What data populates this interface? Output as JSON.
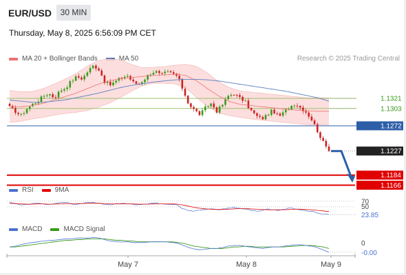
{
  "header": {
    "symbol": "EUR/USD",
    "timeframe": "30 MIN",
    "datetime": "Thursday, May 8, 2025 6:56:09 PM CET"
  },
  "credit": "Research © 2025 Trading Central",
  "legends": {
    "price": [
      {
        "name": "MA 20 + Bollinger Bands",
        "color": "#f07070"
      },
      {
        "name": "MA 50",
        "color": "#2d5ea8"
      }
    ],
    "rsi": [
      {
        "name": "RSI",
        "color": "#4a72d0"
      },
      {
        "name": "9MA",
        "color": "#e00000"
      }
    ],
    "macd": [
      {
        "name": "MACD",
        "color": "#4a72d0"
      },
      {
        "name": "MACD Signal",
        "color": "#3a9a1a"
      }
    ]
  },
  "colors": {
    "bull": "#3a9a1a",
    "bear": "#cc2222",
    "band_fill": "#fbd8d8",
    "resistance": "#9dc06c",
    "pivot": "#2d5ea8",
    "support": "#e00000",
    "last_price": "#222222",
    "forecast_arrow": "#2d5ea8"
  },
  "chart_data": [
    {
      "type": "candlestick",
      "y_range": [
        1.118,
        1.138
      ],
      "levels": [
        {
          "value": 1.1321,
          "label": "1.1321",
          "kind": "resistance"
        },
        {
          "value": 1.1303,
          "label": "1.1303",
          "kind": "resistance"
        },
        {
          "value": 1.1272,
          "label": "1.1272",
          "kind": "pivot"
        },
        {
          "value": 1.1227,
          "label": "1.1227",
          "kind": "last"
        },
        {
          "value": 1.1184,
          "label": "1.1184",
          "kind": "support"
        },
        {
          "value": 1.1166,
          "label": "1.1166",
          "kind": "support"
        }
      ],
      "forecast": {
        "from": 1.1227,
        "to": 1.1172
      },
      "close_path": [
        1.1305,
        1.1298,
        1.129,
        1.1302,
        1.131,
        1.1316,
        1.1325,
        1.133,
        1.1322,
        1.1335,
        1.134,
        1.1352,
        1.136,
        1.1356,
        1.137,
        1.138,
        1.1372,
        1.135,
        1.1345,
        1.1352,
        1.1358,
        1.1362,
        1.135,
        1.1346,
        1.1355,
        1.1365,
        1.137,
        1.1362,
        1.1368,
        1.1366,
        1.136,
        1.1335,
        1.131,
        1.13,
        1.1292,
        1.1305,
        1.1312,
        1.1298,
        1.131,
        1.1325,
        1.133,
        1.1322,
        1.1316,
        1.13,
        1.129,
        1.1284,
        1.1292,
        1.13,
        1.1288,
        1.1296,
        1.1306,
        1.1312,
        1.1304,
        1.1296,
        1.1282,
        1.1262,
        1.1242,
        1.1227
      ],
      "ma20_path": [
        1.1305,
        1.1306,
        1.1308,
        1.1312,
        1.1318,
        1.1324,
        1.133,
        1.1338,
        1.1346,
        1.1352,
        1.1356,
        1.1358,
        1.136,
        1.1362,
        1.1363,
        1.1364,
        1.1362,
        1.1352,
        1.1338,
        1.1325,
        1.1315,
        1.131,
        1.1308,
        1.1306,
        1.1304,
        1.1302,
        1.13,
        1.1299,
        1.1298,
        1.1298
      ],
      "bb_upper_path": [
        1.1335,
        1.1333,
        1.1333,
        1.1338,
        1.1346,
        1.1355,
        1.1365,
        1.1378,
        1.1388,
        1.1392,
        1.139,
        1.1382,
        1.1376,
        1.1376,
        1.1378,
        1.138,
        1.1382,
        1.1378,
        1.1366,
        1.135,
        1.134,
        1.1334,
        1.1332,
        1.133,
        1.1328,
        1.1326,
        1.1324,
        1.1322,
        1.1322,
        1.1322
      ],
      "bb_lower_path": [
        1.1278,
        1.128,
        1.1284,
        1.1287,
        1.1291,
        1.1294,
        1.1296,
        1.1299,
        1.1305,
        1.1312,
        1.1322,
        1.1333,
        1.1343,
        1.1348,
        1.1348,
        1.1347,
        1.134,
        1.1322,
        1.1306,
        1.1295,
        1.129,
        1.1287,
        1.1284,
        1.1282,
        1.128,
        1.1278,
        1.1276,
        1.1274,
        1.1274,
        1.1274
      ],
      "ma50_path": [
        1.1318,
        1.1316,
        1.1314,
        1.1314,
        1.1316,
        1.1318,
        1.1322,
        1.1326,
        1.133,
        1.1335,
        1.134,
        1.1344,
        1.1347,
        1.135,
        1.1352,
        1.1354,
        1.1355,
        1.1355,
        1.1354,
        1.1352,
        1.1349,
        1.1346,
        1.1343,
        1.134,
        1.1337,
        1.1334,
        1.133,
        1.1326,
        1.1322,
        1.1316
      ]
    },
    {
      "type": "line",
      "name": "RSI",
      "level_labels": [
        "70",
        "50",
        "23.85"
      ],
      "levels": [
        70,
        50
      ],
      "current": 23.85,
      "y_range": [
        10,
        80
      ],
      "rsi_path": [
        64,
        60,
        56,
        58,
        60,
        62,
        58,
        56,
        60,
        64,
        66,
        60,
        58,
        62,
        65,
        64,
        62,
        58,
        56,
        60,
        62,
        60,
        58,
        56,
        58,
        62,
        64,
        60,
        58,
        60,
        56,
        42,
        38,
        36,
        38,
        42,
        44,
        40,
        42,
        46,
        48,
        44,
        42,
        38,
        36,
        38,
        42,
        40,
        38,
        42,
        46,
        44,
        40,
        38,
        34,
        30,
        26,
        23.85
      ],
      "ma9_path": [
        62,
        61,
        60,
        59,
        59,
        60,
        60,
        59,
        59,
        60,
        61,
        61,
        61,
        61,
        62,
        62,
        62,
        61,
        60,
        60,
        60,
        60,
        60,
        59,
        59,
        59,
        60,
        60,
        60,
        60,
        59,
        56,
        52,
        48,
        45,
        43,
        42,
        41,
        41,
        42,
        43,
        44,
        44,
        43,
        42,
        41,
        40,
        40,
        40,
        40,
        41,
        42,
        42,
        41,
        40,
        38,
        36,
        34
      ]
    },
    {
      "type": "line",
      "name": "MACD",
      "level_labels": [
        "0",
        "-0.00"
      ],
      "y_range": [
        -0.0014,
        0.0012
      ],
      "x_labels": [
        "May 7",
        "May 8",
        "May 9"
      ],
      "macd_path": [
        -0.0004,
        -0.0003,
        -0.0001,
        0.0001,
        0.0002,
        0.0003,
        0.0004,
        0.0005,
        0.0005,
        0.0006,
        0.0007,
        0.0007,
        0.0008,
        0.0008,
        0.0008,
        0.0009,
        0.0008,
        0.0006,
        0.0004,
        0.0003,
        0.0003,
        0.0003,
        0.0002,
        0.0002,
        0.0002,
        0.0003,
        0.0003,
        0.0003,
        0.0003,
        0.0002,
        0.0001,
        -0.0002,
        -0.0005,
        -0.0007,
        -0.0008,
        -0.0007,
        -0.0006,
        -0.0006,
        -0.0005,
        -0.0003,
        -0.0002,
        -0.0002,
        -0.0003,
        -0.0004,
        -0.0005,
        -0.0006,
        -0.0005,
        -0.0004,
        -0.0004,
        -0.0003,
        -0.0002,
        -0.0001,
        -0.0001,
        -0.0002,
        -0.0003,
        -0.0005,
        -0.0008,
        -0.0011
      ],
      "signal_path": [
        -0.0004,
        -0.0004,
        -0.0003,
        -0.0002,
        -0.0001,
        0.0,
        0.0001,
        0.0002,
        0.0003,
        0.0004,
        0.0005,
        0.0005,
        0.0006,
        0.0006,
        0.0007,
        0.0007,
        0.0007,
        0.0007,
        0.0006,
        0.0005,
        0.0005,
        0.0004,
        0.0004,
        0.0003,
        0.0003,
        0.0003,
        0.0003,
        0.0003,
        0.0003,
        0.0003,
        0.0002,
        0.0001,
        -0.0001,
        -0.0003,
        -0.0004,
        -0.0005,
        -0.0006,
        -0.0006,
        -0.0006,
        -0.0005,
        -0.0004,
        -0.0004,
        -0.0003,
        -0.0003,
        -0.0004,
        -0.0004,
        -0.0004,
        -0.0004,
        -0.0004,
        -0.0004,
        -0.0003,
        -0.0003,
        -0.0002,
        -0.0002,
        -0.0002,
        -0.0003,
        -0.0004,
        -0.0006
      ]
    }
  ]
}
